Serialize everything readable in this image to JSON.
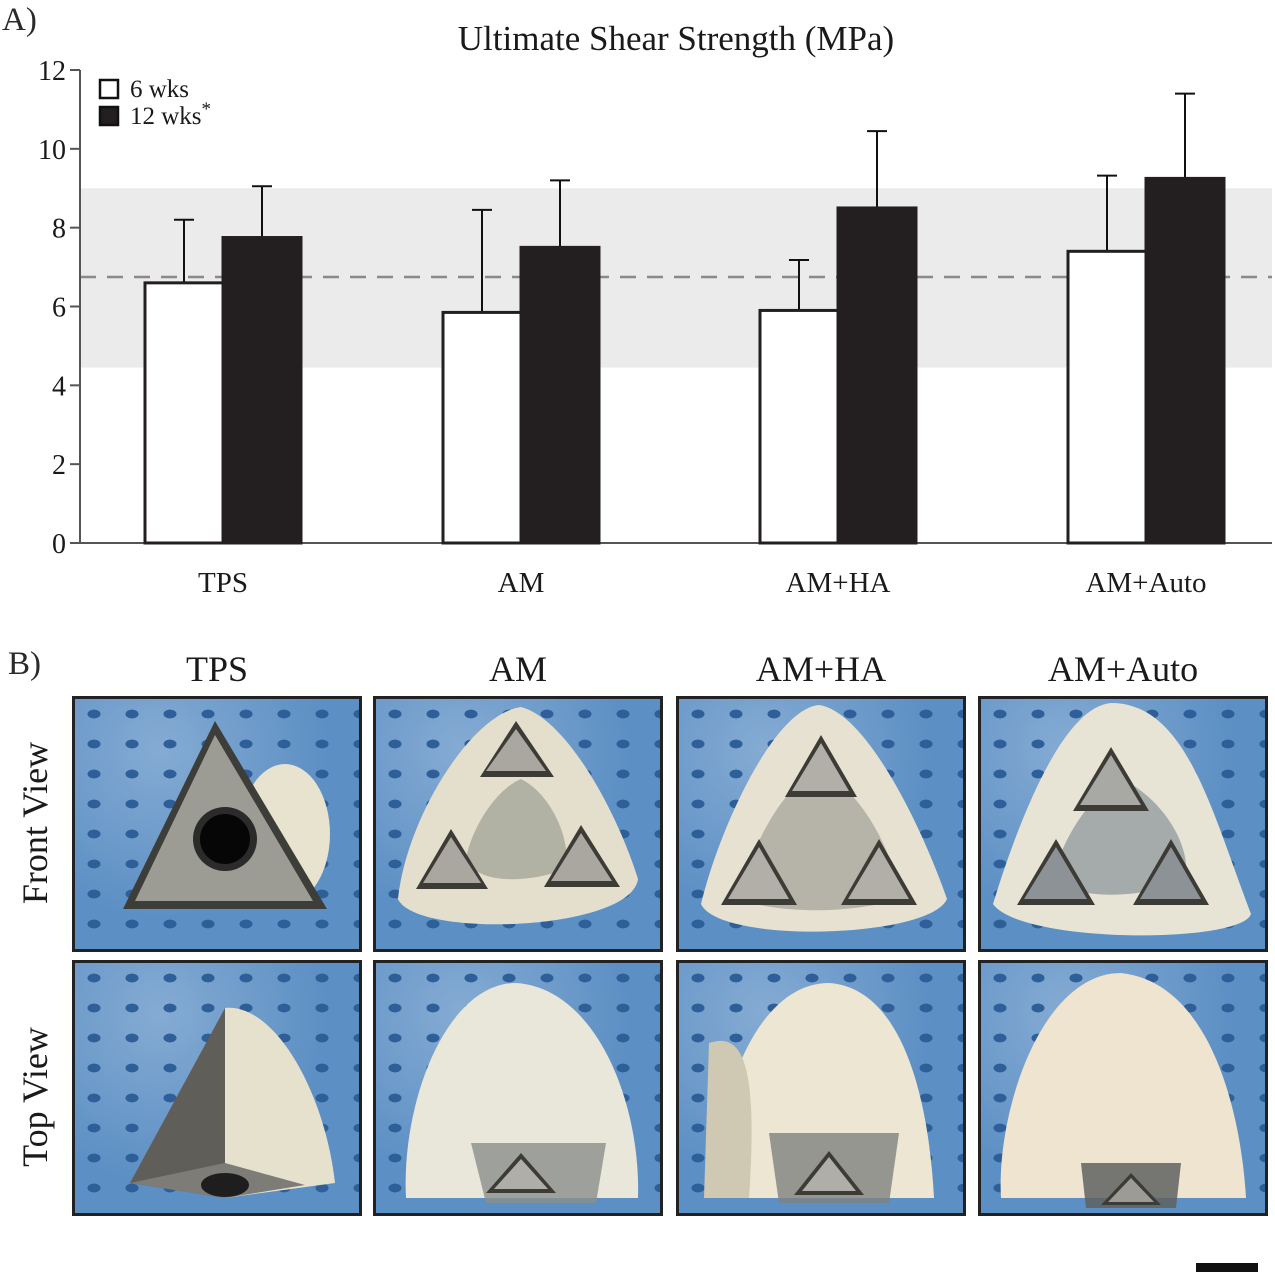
{
  "panel_a_label": "A)",
  "panel_b_label": "B)",
  "chart_data": {
    "type": "bar",
    "title": "Ultimate Shear Strength (MPa)",
    "xlabel": "",
    "ylabel": "",
    "categories": [
      "TPS",
      "AM",
      "AM+HA",
      "AM+Auto"
    ],
    "ylim": [
      0,
      12
    ],
    "yticks": [
      0,
      2,
      4,
      6,
      8,
      10,
      12
    ],
    "series": [
      {
        "name": "6 wks",
        "values": [
          6.6,
          5.85,
          5.9,
          7.4
        ],
        "error": [
          1.6,
          2.6,
          1.28,
          1.92
        ],
        "color": "#ffffff"
      },
      {
        "name": "12 wks",
        "values": [
          7.75,
          7.5,
          8.5,
          9.25
        ],
        "error": [
          1.3,
          1.7,
          1.95,
          2.15
        ],
        "color": "#231f20",
        "annotation": "*"
      }
    ],
    "reference_band": [
      4.45,
      9.0
    ],
    "reference_line": 6.75,
    "legend_position": "top-left",
    "grid": false
  },
  "panel_b": {
    "columns": [
      "TPS",
      "AM",
      "AM+HA",
      "AM+Auto"
    ],
    "rows": [
      "Front View",
      "Top View"
    ]
  }
}
